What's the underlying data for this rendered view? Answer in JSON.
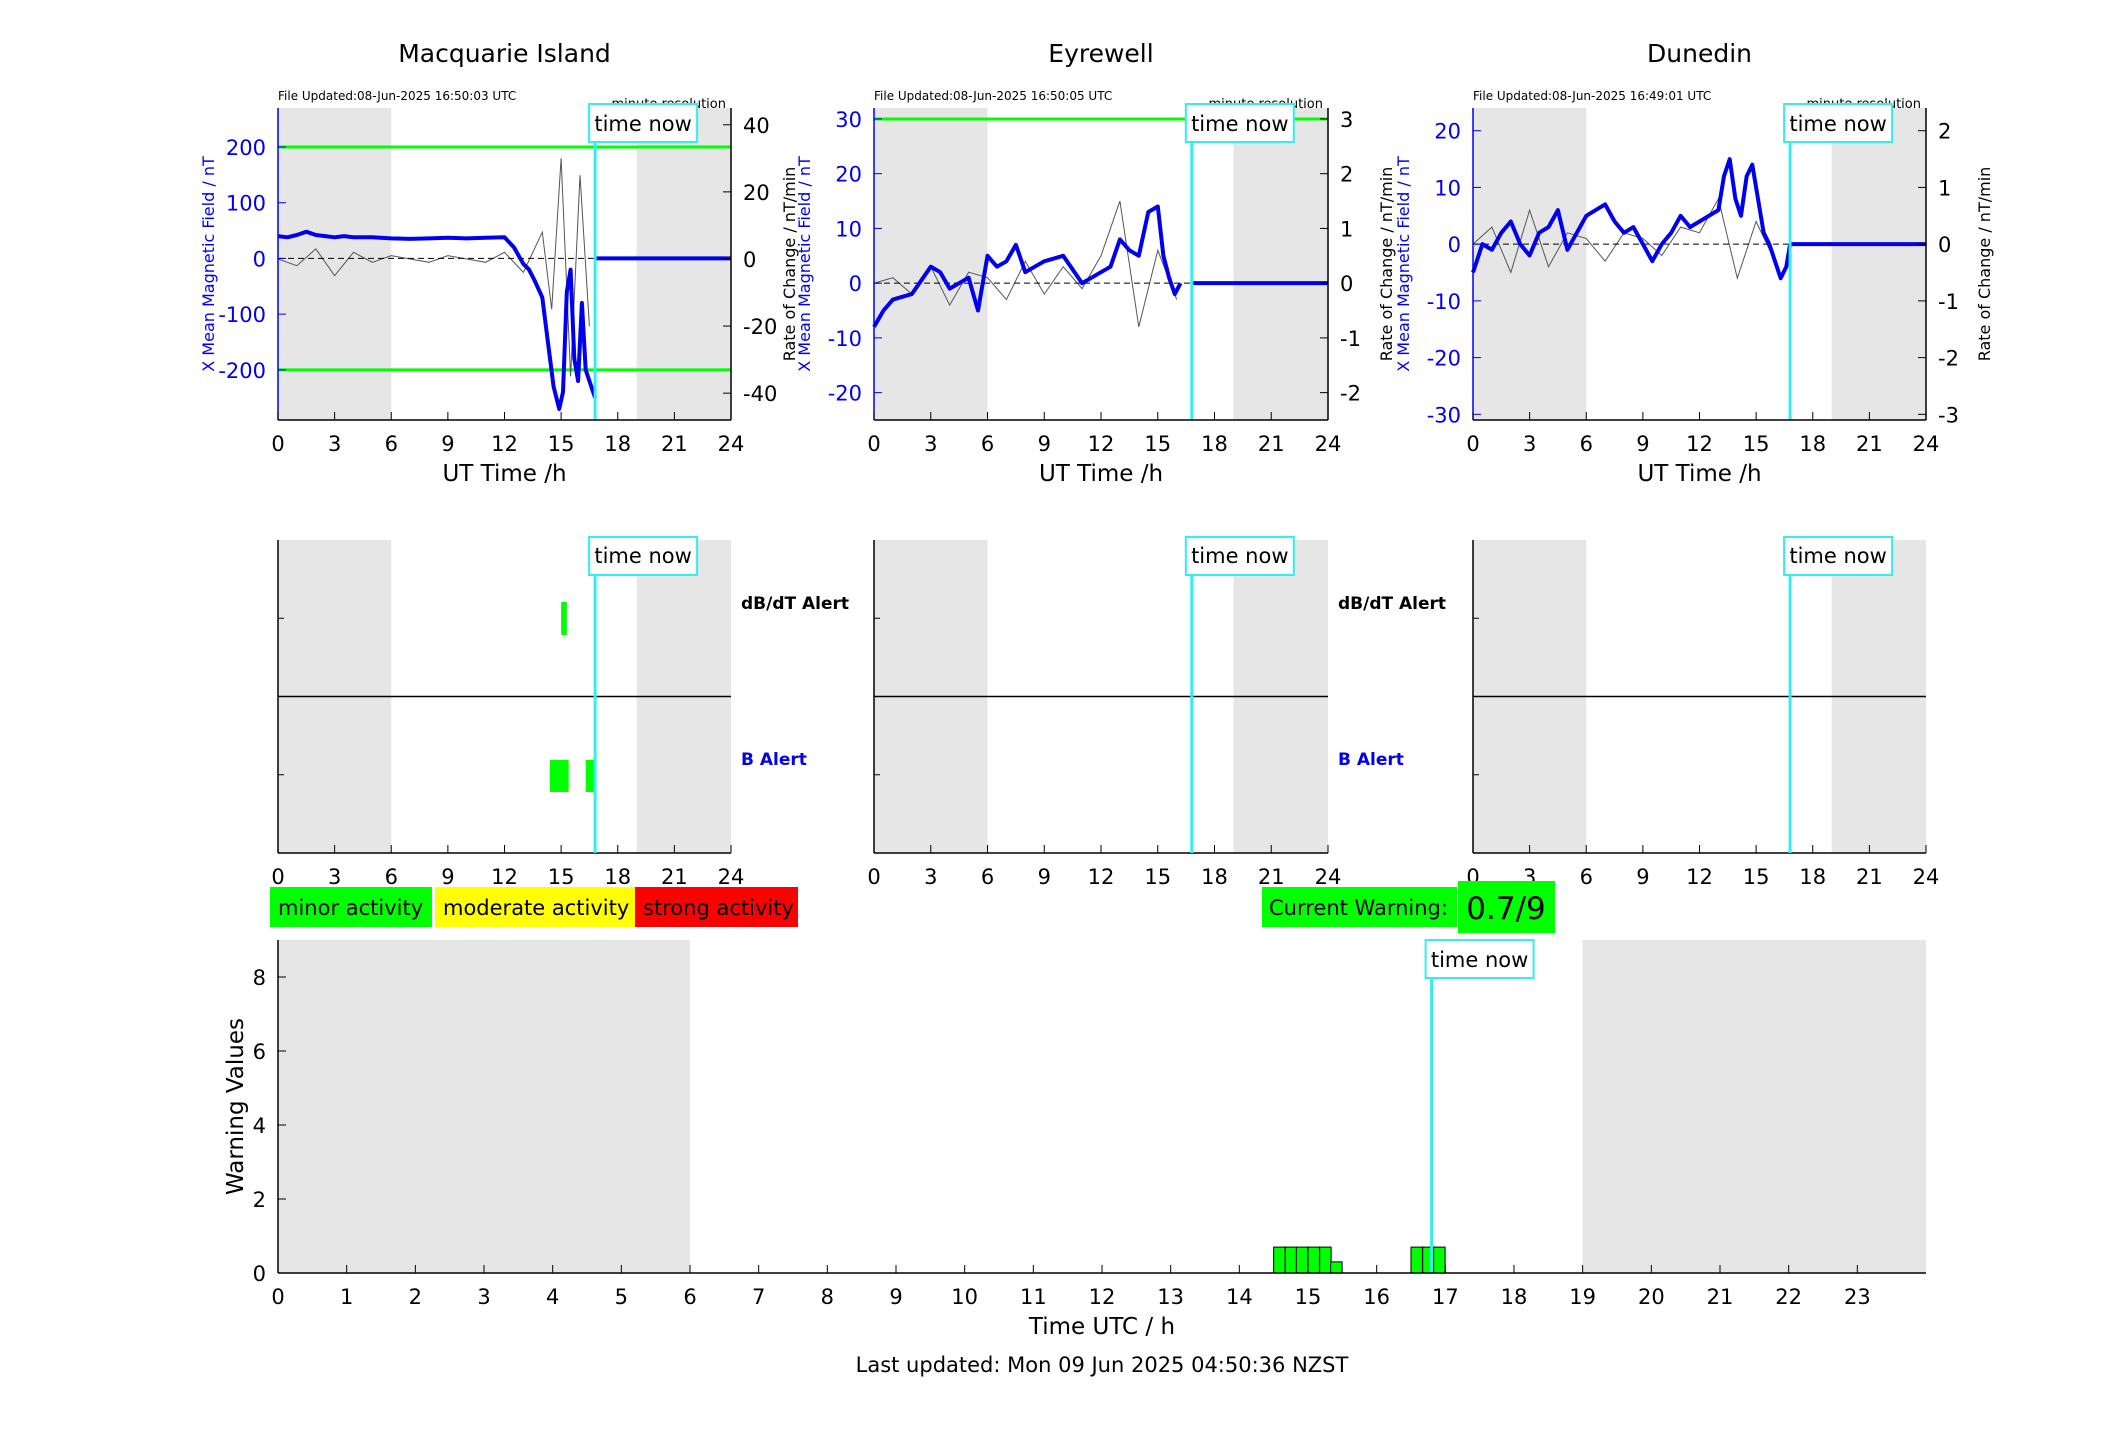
{
  "stations": [
    {
      "name": "Macquarie Island",
      "file_updated": "File Updated:08-Jun-2025 16:50:03 UTC",
      "resolution_label": "minute resolution",
      "left_ylabel": "X Mean Magnetic Field / nT",
      "right_ylabel": "Rate of Change / nT/min",
      "xlabel": "UT Time /h",
      "left_yticks": [
        "200",
        "100",
        "0",
        "-100",
        "-200"
      ],
      "right_yticks": [
        "40",
        "20",
        "0",
        "-20",
        "-40"
      ],
      "xticks": [
        "0",
        "3",
        "6",
        "9",
        "12",
        "15",
        "18",
        "21",
        "24"
      ]
    },
    {
      "name": "Eyrewell",
      "file_updated": "File Updated:08-Jun-2025 16:50:05 UTC",
      "resolution_label": "minute resolution",
      "left_ylabel": "X Mean Magnetic Field / nT",
      "right_ylabel": "Rate of Change / nT/min",
      "xlabel": "UT Time /h",
      "left_yticks": [
        "30",
        "20",
        "10",
        "0",
        "-10",
        "-20"
      ],
      "right_yticks": [
        "3",
        "2",
        "1",
        "0",
        "-1",
        "-2"
      ],
      "xticks": [
        "0",
        "3",
        "6",
        "9",
        "12",
        "15",
        "18",
        "21",
        "24"
      ]
    },
    {
      "name": "Dunedin",
      "file_updated": "File Updated:08-Jun-2025 16:49:01 UTC",
      "resolution_label": "minute resolution",
      "left_ylabel": "X Mean Magnetic Field / nT",
      "right_ylabel": "Rate of Change / nT/min",
      "xlabel": "UT Time /h",
      "left_yticks": [
        "20",
        "10",
        "0",
        "-10",
        "-20",
        "-30"
      ],
      "right_yticks": [
        "2",
        "1",
        "0",
        "-1",
        "-2",
        "-3"
      ],
      "xticks": [
        "0",
        "3",
        "6",
        "9",
        "12",
        "15",
        "18",
        "21",
        "24"
      ]
    }
  ],
  "time_now_label": "time now",
  "alert_labels": {
    "dbdt": "dB/dT Alert",
    "b": "B Alert"
  },
  "legend": {
    "minor": "minor activity",
    "moderate": "moderate activity",
    "strong": "strong activity"
  },
  "current_warning": {
    "label": "Current Warning:",
    "value": "0.7/9"
  },
  "warning_plot": {
    "ylabel": "Warning Values",
    "xlabel": "Time UTC / h",
    "yticks": [
      "0",
      "2",
      "4",
      "6",
      "8"
    ],
    "xticks": [
      "0",
      "1",
      "2",
      "3",
      "4",
      "5",
      "6",
      "7",
      "8",
      "9",
      "10",
      "11",
      "12",
      "13",
      "14",
      "15",
      "16",
      "17",
      "18",
      "19",
      "20",
      "21",
      "22",
      "23"
    ]
  },
  "last_updated": "Last updated: Mon 09 Jun 2025 04:50:36 NZST",
  "colors": {
    "field": "#0000ee",
    "rate": "#555555",
    "threshold": "#00ff00",
    "time_now": "#33eeee",
    "night_shade": "#e6e6e6",
    "minor": "#00ff00",
    "moderate": "#ffff00",
    "strong": "#ff0000"
  },
  "chart_data": [
    {
      "type": "line",
      "title": "Macquarie Island",
      "xlabel": "UT Time /h",
      "ylabel": "X Mean Magnetic Field / nT",
      "y2label": "Rate of Change / nT/min",
      "xlim": [
        0,
        24
      ],
      "ylim": [
        -290,
        270
      ],
      "y2lim": [
        -48,
        45
      ],
      "time_now_h": 16.8,
      "night_shade_h": [
        [
          0,
          6
        ],
        [
          19,
          24
        ]
      ],
      "thresholds_nT": [
        200,
        -200
      ],
      "series": [
        {
          "x": [
            0,
            0.5,
            1,
            1.5,
            2,
            2.5,
            3,
            3.5,
            4,
            5,
            6,
            7,
            8,
            9,
            10,
            11,
            12,
            12.5,
            13,
            13.3,
            13.6,
            14,
            14.3,
            14.6,
            14.9,
            15.1,
            15.3,
            15.5,
            15.7,
            15.9,
            16.1,
            16.3,
            16.6,
            16.8
          ],
          "values": [
            40,
            38,
            42,
            48,
            42,
            40,
            38,
            40,
            38,
            38,
            36,
            35,
            36,
            37,
            36,
            37,
            38,
            20,
            -10,
            -20,
            -40,
            -70,
            -150,
            -230,
            -270,
            -240,
            -60,
            -20,
            -180,
            -220,
            -80,
            -200,
            -230,
            -250
          ]
        },
        {
          "x": [
            0,
            1,
            2,
            3,
            4,
            5,
            6,
            7,
            8,
            9,
            10,
            11,
            12,
            13,
            14,
            14.5,
            15,
            15.5,
            16,
            16.5
          ],
          "values": [
            0,
            -2,
            3,
            -5,
            2,
            -1,
            1,
            0,
            -1,
            1,
            0,
            -1,
            2,
            -4,
            8,
            -15,
            30,
            -35,
            25,
            -20
          ]
        }
      ]
    },
    {
      "type": "line",
      "title": "Eyrewell",
      "xlabel": "UT Time /h",
      "ylabel": "X Mean Magnetic Field / nT",
      "y2label": "Rate of Change / nT/min",
      "xlim": [
        0,
        24
      ],
      "ylim": [
        -25,
        32
      ],
      "y2lim": [
        -2.5,
        3.2
      ],
      "time_now_h": 16.8,
      "night_shade_h": [
        [
          0,
          6
        ],
        [
          19,
          24
        ]
      ],
      "thresholds_nT": [
        30
      ],
      "series": [
        {
          "x": [
            0,
            0.5,
            1,
            2,
            3,
            3.5,
            4,
            4.5,
            5,
            5.5,
            6,
            6.5,
            7,
            7.5,
            8,
            8.5,
            9,
            10,
            11,
            12,
            12.5,
            13,
            13.5,
            14,
            14.5,
            15,
            15.3,
            15.6,
            15.9,
            16.2
          ],
          "values": [
            -8,
            -5,
            -3,
            -2,
            3,
            2,
            -1,
            0,
            1,
            -5,
            5,
            3,
            4,
            7,
            2,
            3,
            4,
            5,
            0,
            2,
            3,
            8,
            6,
            5,
            13,
            14,
            5,
            1,
            -2,
            0
          ]
        },
        {
          "x": [
            0,
            1,
            2,
            3,
            4,
            5,
            6,
            7,
            8,
            9,
            10,
            11,
            12,
            13,
            14,
            15,
            16
          ],
          "values": [
            0,
            0.1,
            -0.2,
            0.3,
            -0.4,
            0.2,
            0.1,
            -0.3,
            0.4,
            -0.2,
            0.3,
            -0.1,
            0.5,
            1.5,
            -0.8,
            0.6,
            -0.3
          ]
        }
      ]
    },
    {
      "type": "line",
      "title": "Dunedin",
      "xlabel": "UT Time /h",
      "ylabel": "X Mean Magnetic Field / nT",
      "y2label": "Rate of Change / nT/min",
      "xlim": [
        0,
        24
      ],
      "ylim": [
        -31,
        24
      ],
      "y2lim": [
        -3.1,
        2.4
      ],
      "time_now_h": 16.8,
      "night_shade_h": [
        [
          0,
          6
        ],
        [
          19,
          24
        ]
      ],
      "thresholds_nT": [],
      "series": [
        {
          "x": [
            0,
            0.5,
            1,
            1.5,
            2,
            2.5,
            3,
            3.5,
            4,
            4.5,
            5,
            5.5,
            6,
            6.5,
            7,
            7.5,
            8,
            8.5,
            9,
            9.5,
            10,
            10.5,
            11,
            11.5,
            12,
            12.5,
            13,
            13.3,
            13.6,
            13.9,
            14.2,
            14.5,
            14.8,
            15.1,
            15.4,
            15.7,
            16,
            16.3,
            16.6,
            16.8
          ],
          "values": [
            -5,
            0,
            -1,
            2,
            4,
            0,
            -2,
            2,
            3,
            6,
            -1,
            2,
            5,
            6,
            7,
            4,
            2,
            3,
            0,
            -3,
            0,
            2,
            5,
            3,
            4,
            5,
            6,
            12,
            15,
            8,
            5,
            12,
            14,
            8,
            2,
            0,
            -3,
            -6,
            -4,
            0
          ]
        },
        {
          "x": [
            0,
            1,
            2,
            3,
            4,
            5,
            6,
            7,
            8,
            9,
            10,
            11,
            12,
            13,
            14,
            15,
            16
          ],
          "values": [
            0,
            0.3,
            -0.5,
            0.6,
            -0.4,
            0.2,
            0.1,
            -0.3,
            0.2,
            0.1,
            -0.2,
            0.3,
            0.2,
            0.8,
            -0.6,
            0.4,
            -0.3
          ]
        }
      ]
    },
    {
      "type": "bar",
      "title": "",
      "xlabel": "Time UTC / h",
      "ylabel": "Warning Values",
      "xlim": [
        0,
        24
      ],
      "ylim": [
        0,
        9
      ],
      "time_now_h": 16.8,
      "night_shade_h": [
        [
          0,
          6
        ],
        [
          19,
          24
        ]
      ],
      "x": [
        14.5,
        14.67,
        14.83,
        15.0,
        15.17,
        15.33,
        16.5,
        16.67,
        16.83
      ],
      "values": [
        0.7,
        0.7,
        0.7,
        0.7,
        0.7,
        0.3,
        0.7,
        0.7,
        0.7
      ]
    }
  ]
}
